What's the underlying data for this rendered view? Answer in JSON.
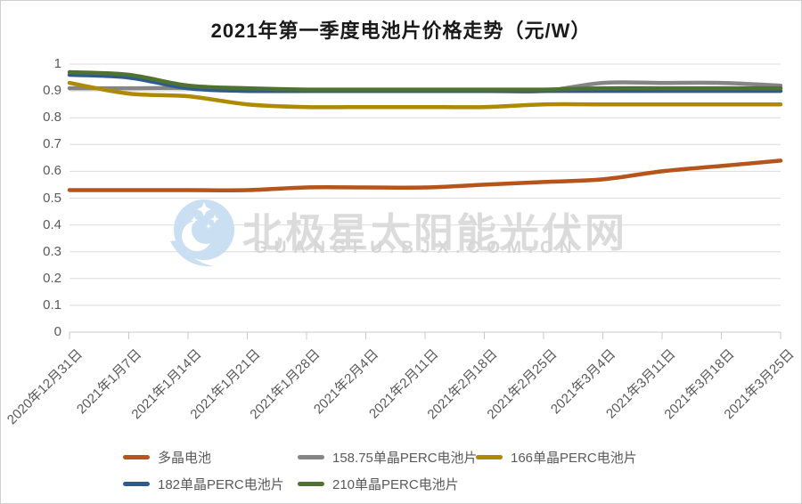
{
  "title": "2021年第一季度电池片价格走势（元/W）",
  "watermark": {
    "site_name": "北极星太阳能光伏网",
    "site_url": "GUANGFU.BJX.COM.CN",
    "logo_color": "#CADFF2"
  },
  "axis": {
    "y_tick_labels": [
      "1",
      "0.9",
      "0.8",
      "0.7",
      "0.6",
      "0.5",
      "0.4",
      "0.3",
      "0.2",
      "0.1",
      "0"
    ],
    "grid_color": "#DCDCDC",
    "axis_color": "#C9C9C9",
    "label_color": "#595959"
  },
  "chart_data": {
    "type": "line",
    "title": "2021年第一季度电池片价格走势（元/W）",
    "categories": [
      "2020年12月31日",
      "2021年1月7日",
      "2021年1月14日",
      "2021年1月21日",
      "2021年1月28日",
      "2021年2月4日",
      "2021年2月11日",
      "2021年2月18日",
      "2021年2月25日",
      "2021年3月4日",
      "2021年3月11日",
      "2021年3月18日",
      "2021年3月25日"
    ],
    "series": [
      {
        "name": "多晶电池",
        "color": "#B5541B",
        "values": [
          0.53,
          0.53,
          0.53,
          0.53,
          0.54,
          0.54,
          0.54,
          0.55,
          0.56,
          0.57,
          0.6,
          0.62,
          0.64
        ]
      },
      {
        "name": "158.75单晶PERC电池片",
        "color": "#858585",
        "values": [
          0.91,
          0.91,
          0.91,
          0.9,
          0.9,
          0.9,
          0.9,
          0.9,
          0.9,
          0.93,
          0.93,
          0.93,
          0.92
        ]
      },
      {
        "name": "166单晶PERC电池片",
        "color": "#AD8A00",
        "values": [
          0.93,
          0.89,
          0.88,
          0.85,
          0.84,
          0.84,
          0.84,
          0.84,
          0.85,
          0.85,
          0.85,
          0.85,
          0.85
        ]
      },
      {
        "name": "182单晶PERC电池片",
        "color": "#2E5B8F",
        "values": [
          0.96,
          0.95,
          0.91,
          0.9,
          0.9,
          0.9,
          0.9,
          0.9,
          0.9,
          0.9,
          0.9,
          0.9,
          0.9
        ]
      },
      {
        "name": "210单晶PERC电池片",
        "color": "#4F7231",
        "values": [
          0.97,
          0.96,
          0.92,
          0.91,
          0.905,
          0.905,
          0.905,
          0.905,
          0.905,
          0.91,
          0.91,
          0.91,
          0.91
        ]
      }
    ],
    "ylim": [
      0,
      1
    ],
    "y_ticks": [
      0,
      0.1,
      0.2,
      0.3,
      0.4,
      0.5,
      0.6,
      0.7,
      0.8,
      0.9,
      1
    ],
    "grid": "horizontal",
    "line_smoothing": true,
    "legend_position": "bottom",
    "legend_rows": [
      [
        0,
        1,
        2
      ],
      [
        3,
        4
      ]
    ]
  }
}
